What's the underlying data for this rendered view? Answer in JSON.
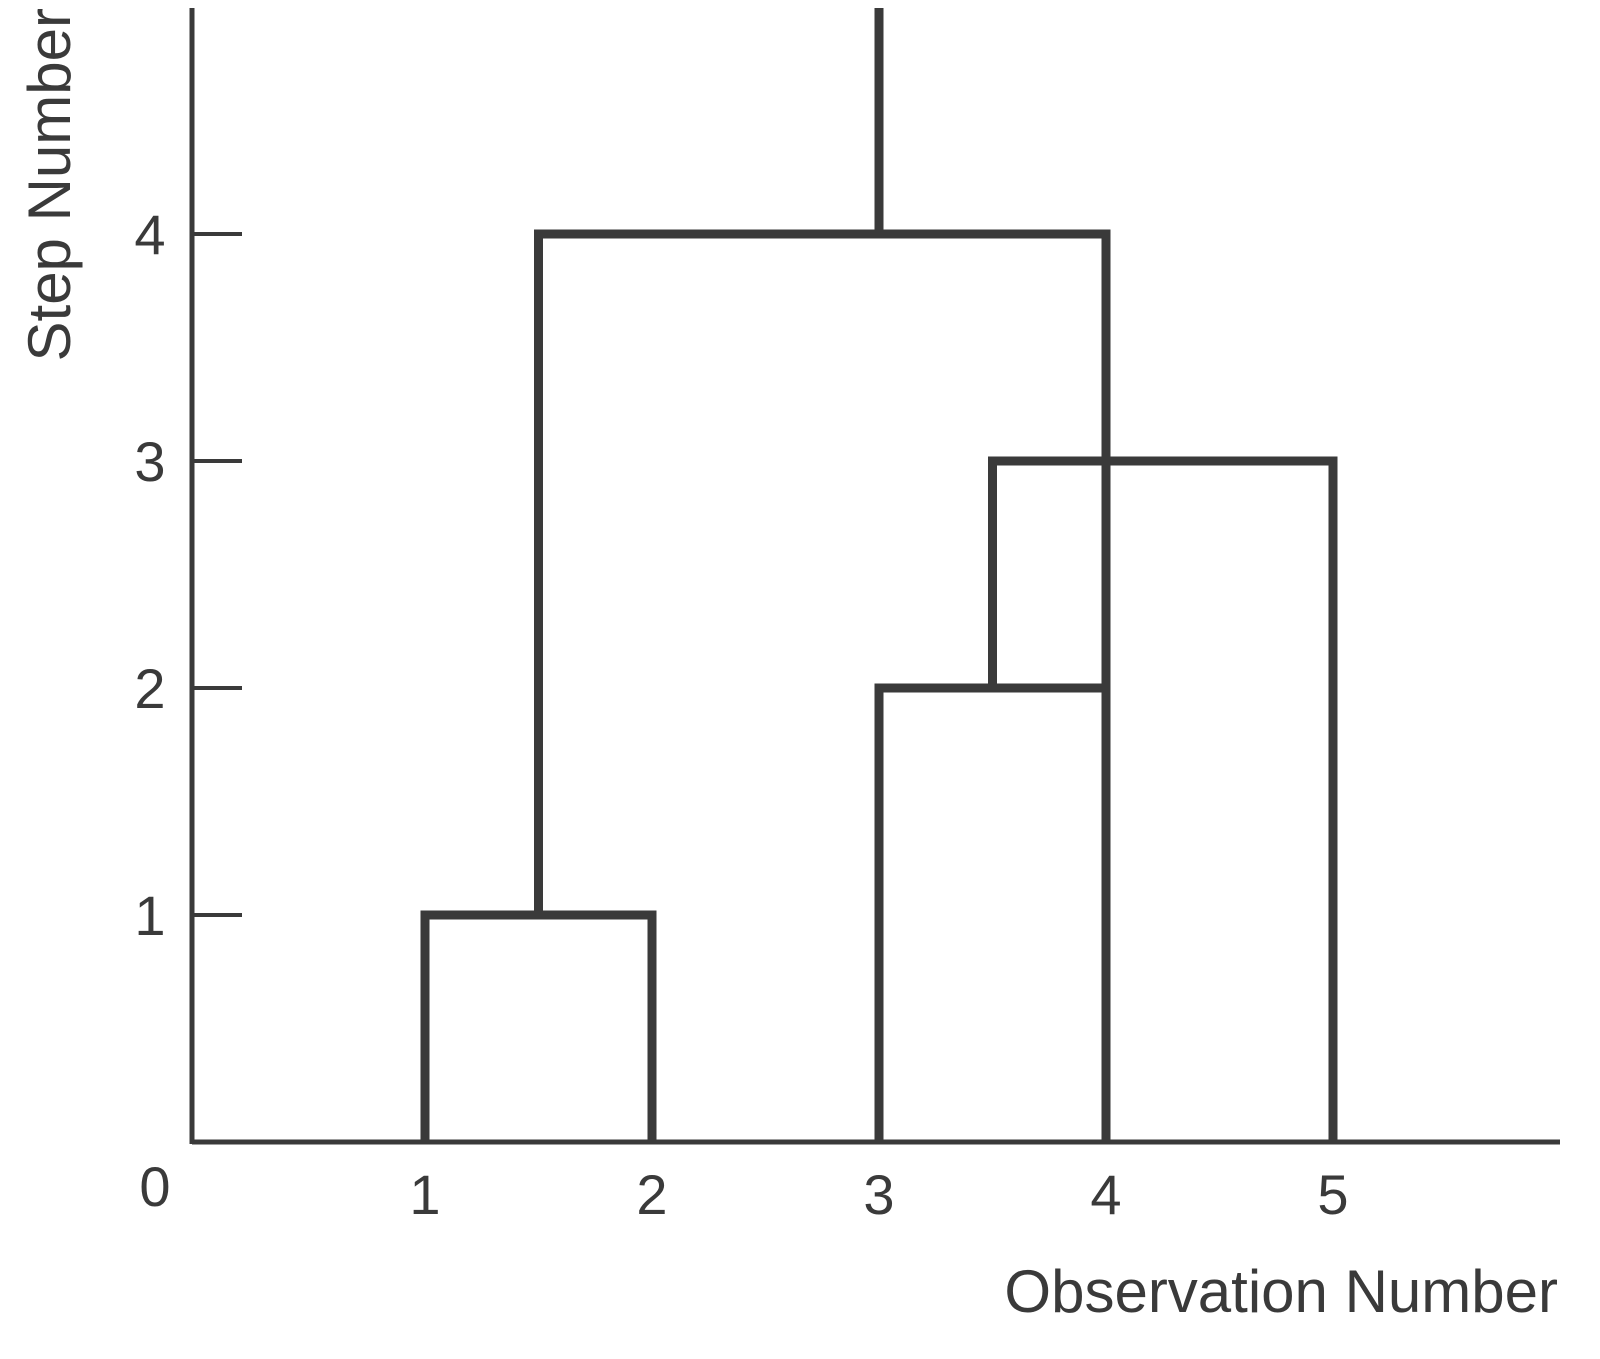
{
  "chart_data": {
    "type": "dendrogram",
    "xlabel": "Observation Number",
    "ylabel": "Step Number",
    "origin_label": "0",
    "x_ticks": [
      "1",
      "2",
      "3",
      "4",
      "5"
    ],
    "y_ticks": [
      "1",
      "2",
      "3",
      "4"
    ],
    "ylim": [
      0,
      5
    ],
    "leaves": [
      1,
      2,
      3,
      4,
      5
    ],
    "merges": [
      {
        "step": 1,
        "left": 1,
        "right": 2
      },
      {
        "step": 2,
        "left": 3,
        "right": 4
      },
      {
        "step": 3,
        "left": 3.5,
        "right": 5
      },
      {
        "step": 4,
        "left": 1.5,
        "right": 4
      }
    ],
    "root_x": 3.0,
    "line_color": "#3a3a3a"
  }
}
